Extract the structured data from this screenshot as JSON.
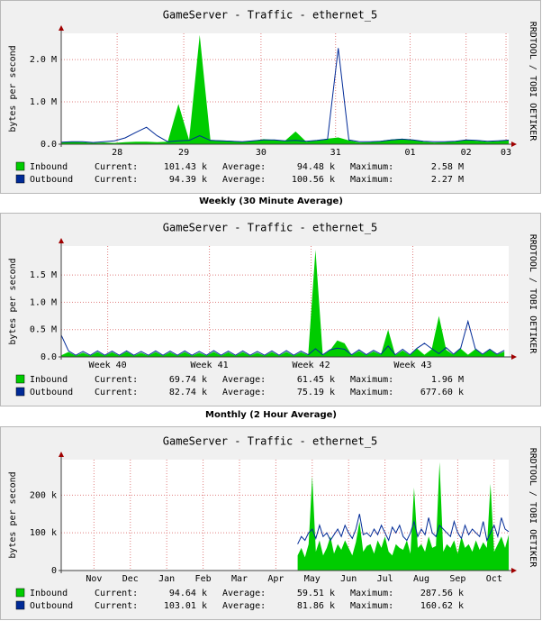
{
  "chart_data": [
    {
      "type": "area-line",
      "title": "GameServer - Traffic - ethernet_5",
      "y_label": "bytes per second",
      "watermark": "RRDTOOL / TOBI OETIKER",
      "stat_labels": [
        "Current:",
        "Average:",
        "Maximum:"
      ],
      "grid": true,
      "x": [
        0,
        4,
        8,
        12,
        16,
        20,
        24,
        28,
        32,
        36,
        40,
        44,
        48,
        52,
        56,
        60,
        64,
        68,
        72,
        76,
        80,
        84,
        88,
        92,
        96,
        100,
        104,
        108,
        112,
        116,
        120,
        124,
        128,
        132,
        136,
        140,
        144,
        148,
        152,
        156,
        160,
        164,
        168
      ],
      "xlim": [
        0,
        168
      ],
      "xticks": [
        {
          "value": 21,
          "label": "28"
        },
        {
          "value": 46,
          "label": "29"
        },
        {
          "value": 75,
          "label": "30"
        },
        {
          "value": 103,
          "label": "31"
        },
        {
          "value": 131,
          "label": "01"
        },
        {
          "value": 152,
          "label": "02"
        },
        {
          "value": 167,
          "label": "03"
        }
      ],
      "ylim": [
        0,
        2620000
      ],
      "yticks": [
        {
          "value": 0,
          "label": "0.0"
        },
        {
          "value": 1000000,
          "label": "1.0 M"
        },
        {
          "value": 2000000,
          "label": "2.0 M"
        }
      ],
      "series": [
        {
          "name": "Inbound",
          "color": "#00cc00",
          "current": "101.43 k",
          "average": "94.48 k",
          "maximum": "2.58 M",
          "values": [
            40000,
            60000,
            50000,
            30000,
            40000,
            30000,
            50000,
            60000,
            60000,
            50000,
            60000,
            950000,
            100000,
            2580000,
            100000,
            90000,
            80000,
            60000,
            80000,
            120000,
            100000,
            80000,
            300000,
            60000,
            90000,
            130000,
            160000,
            90000,
            40000,
            50000,
            80000,
            110000,
            130000,
            100000,
            60000,
            40000,
            50000,
            70000,
            100000,
            80000,
            60000,
            70000,
            100000
          ]
        },
        {
          "name": "Outbound",
          "color": "#002a97",
          "current": "94.39 k",
          "average": "100.56 k",
          "maximum": "2.27 M",
          "values": [
            50000,
            60000,
            60000,
            40000,
            60000,
            80000,
            150000,
            280000,
            400000,
            200000,
            60000,
            80000,
            90000,
            200000,
            90000,
            80000,
            70000,
            60000,
            80000,
            100000,
            100000,
            80000,
            90000,
            70000,
            90000,
            120000,
            2270000,
            100000,
            60000,
            60000,
            70000,
            100000,
            120000,
            100000,
            70000,
            60000,
            60000,
            70000,
            100000,
            90000,
            70000,
            80000,
            95000
          ]
        }
      ]
    },
    {
      "type": "area-line",
      "caption": "Weekly (30 Minute Average)",
      "title": "GameServer - Traffic - ethernet_5",
      "y_label": "bytes per second",
      "watermark": "RRDTOOL / TOBI OETIKER",
      "stat_labels": [
        "Current:",
        "Average:",
        "Maximum:"
      ],
      "grid": true,
      "x": [
        0,
        0.5,
        1,
        1.5,
        2,
        2.5,
        3,
        3.5,
        4,
        4.5,
        5,
        5.5,
        6,
        6.5,
        7,
        7.5,
        8,
        8.5,
        9,
        9.5,
        10,
        10.5,
        11,
        11.5,
        12,
        12.5,
        13,
        13.5,
        14,
        14.5,
        15,
        15.5,
        16,
        16.5,
        17,
        17.5,
        18,
        18.5,
        19,
        19.5,
        20,
        20.5,
        21,
        21.5,
        22,
        22.5,
        23,
        23.5,
        24,
        24.5,
        25,
        25.5,
        26,
        26.5,
        27,
        27.5,
        28,
        28.5,
        29,
        29.5,
        30,
        30.5
      ],
      "xlim": [
        0,
        30.8
      ],
      "xticks": [
        {
          "value": 3.2,
          "label": "Week 40"
        },
        {
          "value": 10.2,
          "label": "Week 41"
        },
        {
          "value": 17.2,
          "label": "Week 42"
        },
        {
          "value": 24.2,
          "label": "Week 43"
        }
      ],
      "ylim": [
        0,
        2030000
      ],
      "yticks": [
        {
          "value": 0,
          "label": "0.0"
        },
        {
          "value": 500000,
          "label": "0.5 M"
        },
        {
          "value": 1000000,
          "label": "1.0 M"
        },
        {
          "value": 1500000,
          "label": "1.5 M"
        }
      ],
      "series": [
        {
          "name": "Inbound",
          "color": "#00cc00",
          "current": "69.74 k",
          "average": "61.45 k",
          "maximum": "1.96 M",
          "values": [
            30000,
            90000,
            20000,
            80000,
            20000,
            90000,
            20000,
            85000,
            20000,
            95000,
            20000,
            80000,
            20000,
            90000,
            20000,
            85000,
            20000,
            90000,
            20000,
            80000,
            20000,
            95000,
            20000,
            85000,
            20000,
            90000,
            20000,
            80000,
            20000,
            90000,
            20000,
            95000,
            20000,
            85000,
            30000,
            1960000,
            30000,
            120000,
            300000,
            250000,
            30000,
            110000,
            30000,
            100000,
            40000,
            500000,
            30000,
            120000,
            30000,
            150000,
            40000,
            140000,
            750000,
            130000,
            40000,
            150000,
            40000,
            140000,
            40000,
            130000,
            40000,
            100000
          ]
        },
        {
          "name": "Outbound",
          "color": "#002a97",
          "current": "82.74 k",
          "average": "75.19 k",
          "maximum": "677.60 k",
          "values": [
            400000,
            110000,
            30000,
            100000,
            30000,
            110000,
            30000,
            105000,
            30000,
            110000,
            30000,
            100000,
            30000,
            110000,
            30000,
            105000,
            30000,
            110000,
            30000,
            100000,
            30000,
            115000,
            30000,
            105000,
            30000,
            110000,
            30000,
            100000,
            30000,
            110000,
            30000,
            115000,
            30000,
            105000,
            40000,
            150000,
            40000,
            130000,
            160000,
            140000,
            40000,
            130000,
            40000,
            120000,
            50000,
            200000,
            40000,
            140000,
            40000,
            160000,
            250000,
            150000,
            60000,
            170000,
            50000,
            160000,
            650000,
            150000,
            50000,
            140000,
            50000,
            120000
          ]
        }
      ]
    },
    {
      "type": "area-line",
      "caption": "Monthly (2 Hour Average)",
      "title": "GameServer - Traffic - ethernet_5",
      "y_label": "bytes per second",
      "watermark": "RRDTOOL / TOBI OETIKER",
      "stat_labels": [
        "Current:",
        "Average:",
        "Maximum:"
      ],
      "grid": true,
      "x": [
        6.1,
        6.2,
        6.3,
        6.4,
        6.5,
        6.6,
        6.7,
        6.8,
        6.9,
        7,
        7.1,
        7.2,
        7.3,
        7.4,
        7.5,
        7.6,
        7.7,
        7.8,
        7.9,
        8,
        8.1,
        8.2,
        8.3,
        8.4,
        8.5,
        8.6,
        8.7,
        8.8,
        8.9,
        9,
        9.1,
        9.2,
        9.3,
        9.4,
        9.5,
        9.6,
        9.7,
        9.8,
        9.9,
        10,
        10.1,
        10.2,
        10.3,
        10.4,
        10.5,
        10.6,
        10.7,
        10.8,
        10.9,
        11,
        11.1,
        11.2,
        11.3,
        11.4,
        11.5,
        11.6,
        11.7,
        11.8,
        11.9
      ],
      "xlim": [
        -0.4,
        11.9
      ],
      "xticks": [
        {
          "value": 0.5,
          "label": "Nov"
        },
        {
          "value": 1.5,
          "label": "Dec"
        },
        {
          "value": 2.5,
          "label": "Jan"
        },
        {
          "value": 3.5,
          "label": "Feb"
        },
        {
          "value": 4.5,
          "label": "Mar"
        },
        {
          "value": 5.5,
          "label": "Apr"
        },
        {
          "value": 6.5,
          "label": "May"
        },
        {
          "value": 7.5,
          "label": "Jun"
        },
        {
          "value": 8.5,
          "label": "Jul"
        },
        {
          "value": 9.5,
          "label": "Aug"
        },
        {
          "value": 10.5,
          "label": "Sep"
        },
        {
          "value": 11.5,
          "label": "Oct"
        }
      ],
      "ylim": [
        0,
        294000
      ],
      "yticks": [
        {
          "value": 0,
          "label": "0"
        },
        {
          "value": 100000,
          "label": "100 k"
        },
        {
          "value": 200000,
          "label": "200 k"
        }
      ],
      "series": [
        {
          "name": "Inbound",
          "color": "#00cc00",
          "current": "94.64 k",
          "average": "59.51 k",
          "maximum": "287.56 k",
          "values": [
            40000,
            60000,
            35000,
            70000,
            250000,
            50000,
            80000,
            40000,
            60000,
            90000,
            45000,
            70000,
            55000,
            80000,
            60000,
            40000,
            75000,
            130000,
            50000,
            65000,
            70000,
            45000,
            80000,
            60000,
            90000,
            50000,
            40000,
            70000,
            60000,
            55000,
            80000,
            45000,
            220000,
            60000,
            70000,
            50000,
            90000,
            60000,
            65000,
            287560,
            50000,
            70000,
            60000,
            80000,
            45000,
            90000,
            60000,
            70000,
            50000,
            80000,
            55000,
            75000,
            60000,
            230000,
            50000,
            70000,
            90000,
            60000,
            94640
          ]
        },
        {
          "name": "Outbound",
          "color": "#002a97",
          "current": "103.01 k",
          "average": "81.86 k",
          "maximum": "160.62 k",
          "values": [
            70000,
            90000,
            80000,
            100000,
            110000,
            85000,
            120000,
            90000,
            100000,
            80000,
            95000,
            110000,
            90000,
            120000,
            100000,
            85000,
            110000,
            150000,
            95000,
            100000,
            90000,
            110000,
            95000,
            120000,
            100000,
            80000,
            115000,
            100000,
            120000,
            90000,
            80000,
            100000,
            130000,
            90000,
            110000,
            95000,
            140000,
            100000,
            90000,
            120000,
            110000,
            100000,
            90000,
            130000,
            100000,
            85000,
            120000,
            95000,
            110000,
            100000,
            90000,
            130000,
            80000,
            100000,
            120000,
            90000,
            140000,
            110000,
            103010
          ]
        }
      ]
    }
  ]
}
